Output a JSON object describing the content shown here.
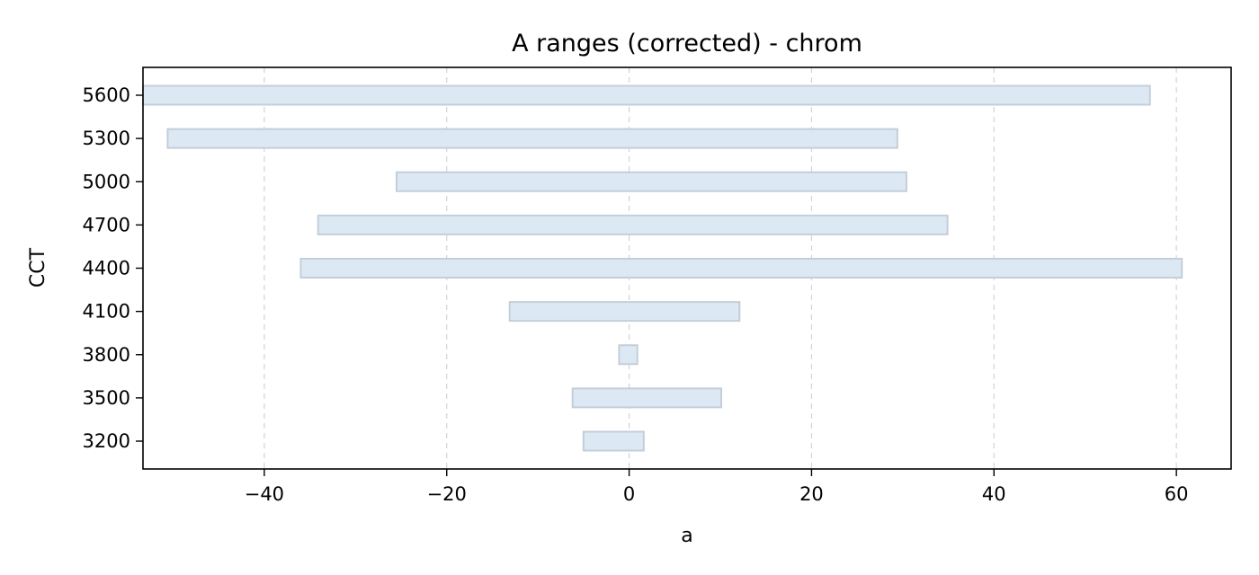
{
  "chart_data": {
    "type": "bar",
    "orientation": "horizontal",
    "title": "A ranges (corrected) - chrom",
    "xlabel": "a",
    "ylabel": "CCT",
    "xlim": [
      -53.3,
      66
    ],
    "xticks": [
      -40,
      -20,
      0,
      20,
      40,
      60
    ],
    "xtick_labels": [
      "−40",
      "−20",
      "0",
      "20",
      "40",
      "60"
    ],
    "grid": "x-dashed",
    "categories": [
      "3200",
      "3500",
      "3800",
      "4100",
      "4400",
      "4700",
      "5000",
      "5300",
      "5600"
    ],
    "ranges": [
      {
        "category": "3200",
        "min": -5.0,
        "max": 1.6
      },
      {
        "category": "3500",
        "min": -6.2,
        "max": 10.1
      },
      {
        "category": "3800",
        "min": -1.1,
        "max": 0.9
      },
      {
        "category": "4100",
        "min": -13.1,
        "max": 12.1
      },
      {
        "category": "4400",
        "min": -36.0,
        "max": 60.6
      },
      {
        "category": "4700",
        "min": -34.1,
        "max": 34.9
      },
      {
        "category": "5000",
        "min": -25.5,
        "max": 30.4
      },
      {
        "category": "5300",
        "min": -50.6,
        "max": 29.4
      },
      {
        "category": "5600",
        "min": -53.3,
        "max": 57.1
      }
    ]
  }
}
